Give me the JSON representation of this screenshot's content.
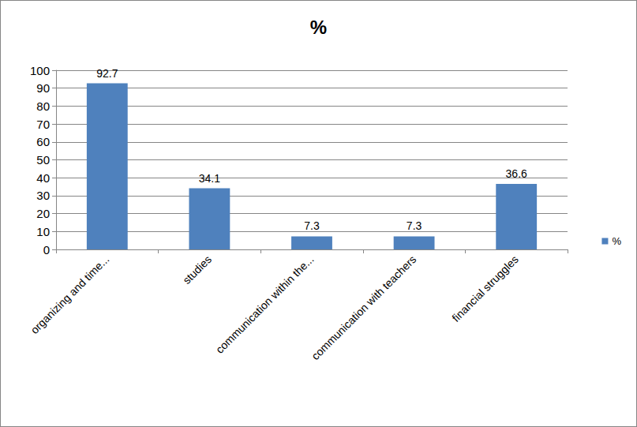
{
  "chart_data": {
    "type": "bar",
    "title": "%",
    "categories": [
      "organizing and time...",
      "studies",
      "communication within the...",
      "communication with teachers",
      "financial struggles"
    ],
    "series": [
      {
        "name": "%",
        "color": "#4f81bd",
        "values": [
          92.7,
          34.1,
          7.3,
          7.3,
          36.6
        ]
      }
    ],
    "ylim": [
      0,
      100
    ],
    "yticks": [
      0,
      10,
      20,
      30,
      40,
      50,
      60,
      70,
      80,
      90,
      100
    ],
    "grid": true,
    "legend": "right",
    "data_labels": true
  }
}
